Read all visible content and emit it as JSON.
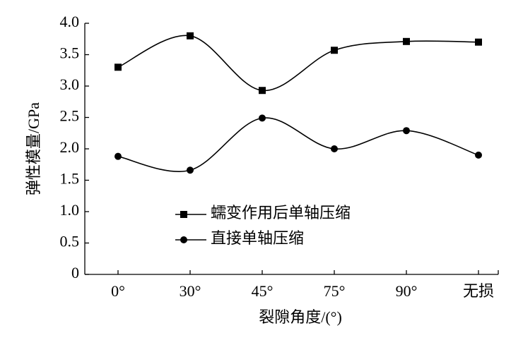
{
  "chart_data": {
    "type": "line",
    "x_label": "裂隙角度/(°)",
    "y_label": "弹性模量/GPa",
    "categories": [
      "0°",
      "30°",
      "45°",
      "75°",
      "90°",
      "无损"
    ],
    "series": [
      {
        "name": "蠕变作用后单轴压缩",
        "color": "#000000",
        "marker": "square",
        "values": [
          3.3,
          3.8,
          2.93,
          3.57,
          3.71,
          3.7
        ]
      },
      {
        "name": "直接单轴压缩",
        "color": "#000000",
        "marker": "circle",
        "values": [
          1.88,
          1.66,
          2.49,
          2.0,
          2.29,
          1.9
        ]
      }
    ],
    "ylim": [
      0,
      4
    ],
    "yticks": [
      0,
      0.5,
      {
        "value": 1,
        "label": "1.0"
      },
      1.5,
      {
        "value": 2,
        "label": "2.0"
      },
      2.5,
      {
        "value": 3,
        "label": "3.0"
      },
      3.5,
      {
        "value": 4,
        "label": "4.0"
      }
    ],
    "smooth": true
  }
}
